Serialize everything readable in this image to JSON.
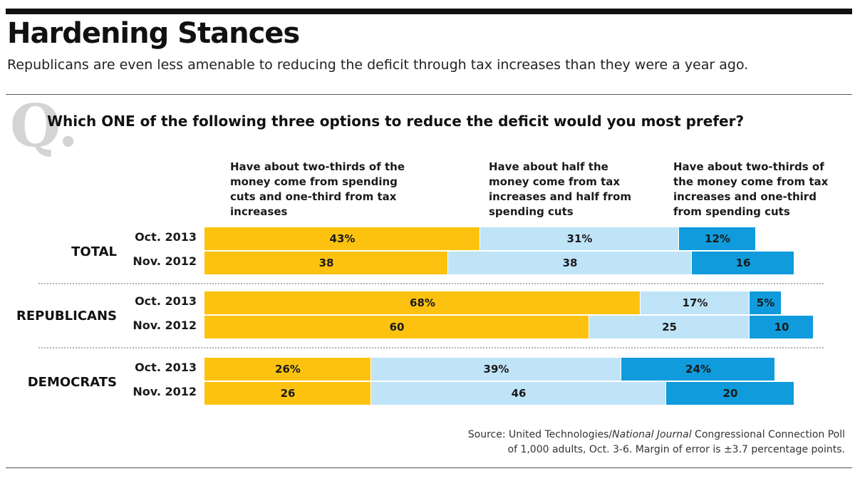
{
  "header": {
    "title": "Hardening Stances",
    "subtitle": "Republicans are even less amenable to reducing the deficit through tax increases than they were a year ago."
  },
  "question": {
    "mark": "Q.",
    "text": "Which ONE of the following three options to reduce the deficit would you most prefer?"
  },
  "colors": {
    "option1": "#fcc20f",
    "option2": "#bfe4f8",
    "option3": "#0f9bdc"
  },
  "chart_data": {
    "type": "bar",
    "stacked": true,
    "orientation": "horizontal",
    "series": [
      {
        "name": "Have about two-thirds of the money come from spending cuts and one-third from tax increases"
      },
      {
        "name": "Have about half the money come from tax increases and half from spending cuts"
      },
      {
        "name": "Have about two-thirds of the money come from tax increases and one-third from spending cuts"
      }
    ],
    "groups": [
      {
        "name": "TOTAL",
        "rows": [
          {
            "period": "Oct. 2013",
            "values": [
              43,
              31,
              12
            ],
            "labels": [
              "43%",
              "31%",
              "12%"
            ]
          },
          {
            "period": "Nov. 2012",
            "values": [
              38,
              38,
              16
            ],
            "labels": [
              "38",
              "38",
              "16"
            ]
          }
        ]
      },
      {
        "name": "REPUBLICANS",
        "rows": [
          {
            "period": "Oct. 2013",
            "values": [
              68,
              17,
              5
            ],
            "labels": [
              "68%",
              "17%",
              "5%"
            ]
          },
          {
            "period": "Nov. 2012",
            "values": [
              60,
              25,
              10
            ],
            "labels": [
              "60",
              "25",
              "10"
            ]
          }
        ]
      },
      {
        "name": "DEMOCRATS",
        "rows": [
          {
            "period": "Oct. 2013",
            "values": [
              26,
              39,
              24
            ],
            "labels": [
              "26%",
              "39%",
              "24%"
            ]
          },
          {
            "period": "Nov. 2012",
            "values": [
              26,
              46,
              20
            ],
            "labels": [
              "26",
              "46",
              "20"
            ]
          }
        ]
      }
    ]
  },
  "source": {
    "prefix": "Source: United Technologies/",
    "italic": "National Journal",
    "suffix": " Congressional Connection Poll",
    "line2": "of 1,000 adults, Oct. 3-6. Margin of error is ±3.7 percentage points."
  }
}
